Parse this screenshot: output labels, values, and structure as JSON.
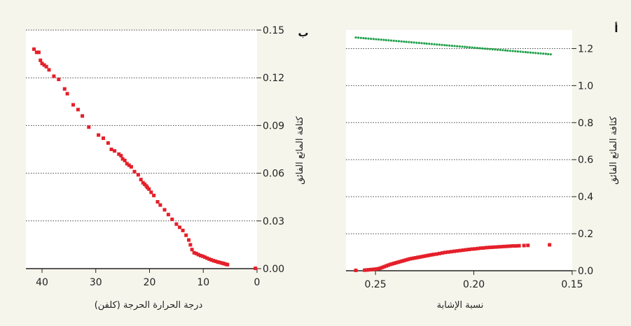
{
  "colors": {
    "background": "#f6f5ec",
    "plot_background": "#ffffff",
    "red_series": "#e4202a",
    "green_series": "#23a24d"
  },
  "chart_data": [
    {
      "panel": "ب",
      "type": "scatter",
      "title": "",
      "xlabel": "درجة الحرارة الحرجة (كلفن)",
      "ylabel": "كثافة المائع الفائق",
      "xlim": [
        43,
        0
      ],
      "ylim": [
        0,
        0.15
      ],
      "xticks": [
        "40",
        "30",
        "20",
        "10",
        "0"
      ],
      "yticks": [
        "0.00",
        "0.03",
        "0.06",
        "0.09",
        "0.12",
        "0.15"
      ],
      "grid": true,
      "series": [
        {
          "color": "#e4202a",
          "x": [
            41.5,
            41,
            40.6,
            40.3,
            40,
            39.6,
            39.2,
            38.7,
            37.8,
            36.9,
            35.8,
            35.3,
            34.2,
            33.3,
            32.5,
            31.3,
            29.5,
            28.6,
            27.7,
            27.1,
            26.5,
            25.7,
            25.3,
            25,
            24.6,
            24.2,
            23.8,
            23.4,
            22.8,
            22.1,
            21.6,
            21.2,
            20.9,
            20.6,
            20.4,
            20.1,
            19.7,
            19.2,
            18.5,
            18,
            17.2,
            16.5,
            15.8,
            15,
            14.4,
            13.8,
            13.2,
            12.7,
            12.4,
            12.1,
            11.7,
            11.3,
            10.9,
            10.5,
            10.1,
            9.7,
            9.3,
            8.9,
            8.5,
            8.1,
            7.7,
            7.3,
            7,
            6.6,
            6.3,
            6,
            5.7,
            5.5,
            0.3
          ],
          "y": [
            0.138,
            0.136,
            0.136,
            0.131,
            0.129,
            0.128,
            0.127,
            0.125,
            0.121,
            0.119,
            0.113,
            0.11,
            0.103,
            0.1,
            0.096,
            0.089,
            0.084,
            0.082,
            0.079,
            0.075,
            0.074,
            0.072,
            0.071,
            0.069,
            0.068,
            0.066,
            0.065,
            0.064,
            0.061,
            0.059,
            0.056,
            0.054,
            0.053,
            0.052,
            0.051,
            0.05,
            0.048,
            0.046,
            0.042,
            0.04,
            0.037,
            0.034,
            0.031,
            0.028,
            0.026,
            0.024,
            0.021,
            0.018,
            0.015,
            0.012,
            0.01,
            0.0095,
            0.0088,
            0.0082,
            0.0078,
            0.0072,
            0.0066,
            0.006,
            0.0055,
            0.005,
            0.0046,
            0.0042,
            0.0039,
            0.0036,
            0.0033,
            0.003,
            0.0027,
            0.0025,
            0.0002
          ]
        }
      ]
    },
    {
      "panel": "أ",
      "type": "scatter",
      "title": "",
      "xlabel": "نسبة الإشابة",
      "ylabel": "كثافة المائع الفائق",
      "xlim": [
        0.265,
        0.15
      ],
      "ylim": [
        0,
        1.3
      ],
      "xticks": [
        "0.25",
        "0.20",
        "0.15"
      ],
      "yticks": [
        "0.0",
        "0.2",
        "0.4",
        "0.6",
        "0.8",
        "1.0",
        "1.2"
      ],
      "grid": true,
      "series": [
        {
          "color": "#23a24d",
          "x": [
            0.26,
            0.2587,
            0.2574,
            0.2561,
            0.2549,
            0.2536,
            0.2523,
            0.251,
            0.2497,
            0.2484,
            0.2471,
            0.2458,
            0.2446,
            0.2433,
            0.242,
            0.2407,
            0.2394,
            0.2381,
            0.2368,
            0.2355,
            0.2343,
            0.233,
            0.2317,
            0.2304,
            0.2291,
            0.2278,
            0.2265,
            0.2252,
            0.224,
            0.2227,
            0.2214,
            0.2201,
            0.2188,
            0.2175,
            0.2162,
            0.2149,
            0.2137,
            0.2124,
            0.2111,
            0.2098,
            0.2085,
            0.2072,
            0.2059,
            0.2046,
            0.2034,
            0.2021,
            0.2008,
            0.1995,
            0.1982,
            0.1969,
            0.1956,
            0.1943,
            0.1931,
            0.1918,
            0.1905,
            0.1892,
            0.1879,
            0.1866,
            0.1853,
            0.184,
            0.1828,
            0.1815,
            0.1802,
            0.1789,
            0.1776,
            0.1763,
            0.175,
            0.1737,
            0.1725,
            0.1712,
            0.1699,
            0.1686,
            0.1673,
            0.166,
            0.1647,
            0.1634,
            0.1622,
            0.1609
          ],
          "y": [
            1.26,
            1.2588,
            1.2576,
            1.2564,
            1.2553,
            1.2541,
            1.2529,
            1.2517,
            1.2505,
            1.2494,
            1.2482,
            1.247,
            1.2458,
            1.2446,
            1.2434,
            1.2423,
            1.2411,
            1.2399,
            1.2387,
            1.2375,
            1.2364,
            1.2352,
            1.234,
            1.2328,
            1.2316,
            1.2305,
            1.2293,
            1.2281,
            1.2269,
            1.2257,
            1.2246,
            1.2234,
            1.2222,
            1.221,
            1.2198,
            1.2186,
            1.2175,
            1.2163,
            1.2151,
            1.2139,
            1.2127,
            1.2116,
            1.2104,
            1.2092,
            1.208,
            1.2068,
            1.2057,
            1.2045,
            1.2033,
            1.2021,
            1.2009,
            1.1997,
            1.1986,
            1.1974,
            1.1962,
            1.195,
            1.1938,
            1.1927,
            1.1915,
            1.1903,
            1.1891,
            1.1879,
            1.1868,
            1.1856,
            1.1844,
            1.1832,
            1.182,
            1.1809,
            1.1797,
            1.1785,
            1.1773,
            1.1761,
            1.1749,
            1.1738,
            1.1726,
            1.1714,
            1.1702,
            1.169
          ]
        },
        {
          "color": "#e4202a",
          "x": [
            0.26,
            0.2555,
            0.2545,
            0.2535,
            0.2525,
            0.2515,
            0.2505,
            0.2495,
            0.2485,
            0.2475,
            0.2465,
            0.2455,
            0.2445,
            0.2435,
            0.2425,
            0.2415,
            0.2405,
            0.2395,
            0.2385,
            0.2375,
            0.2365,
            0.2355,
            0.2345,
            0.2335,
            0.2325,
            0.2315,
            0.2305,
            0.2295,
            0.2285,
            0.2275,
            0.2265,
            0.2255,
            0.2245,
            0.2235,
            0.2225,
            0.2215,
            0.2205,
            0.219,
            0.2175,
            0.216,
            0.2145,
            0.213,
            0.2115,
            0.21,
            0.2085,
            0.207,
            0.2055,
            0.204,
            0.2025,
            0.201,
            0.1995,
            0.198,
            0.1965,
            0.195,
            0.1935,
            0.192,
            0.1905,
            0.189,
            0.1875,
            0.186,
            0.1845,
            0.183,
            0.1815,
            0.18,
            0.1785,
            0.177,
            0.1745,
            0.1725,
            0.1615
          ],
          "y": [
            0.002,
            0.003,
            0.004,
            0.005,
            0.006,
            0.007,
            0.008,
            0.009,
            0.011,
            0.014,
            0.018,
            0.022,
            0.026,
            0.03,
            0.034,
            0.037,
            0.04,
            0.043,
            0.046,
            0.049,
            0.052,
            0.055,
            0.058,
            0.061,
            0.064,
            0.066,
            0.068,
            0.07,
            0.072,
            0.074,
            0.076,
            0.078,
            0.08,
            0.082,
            0.084,
            0.086,
            0.088,
            0.09,
            0.093,
            0.096,
            0.099,
            0.101,
            0.103,
            0.105,
            0.107,
            0.109,
            0.111,
            0.113,
            0.115,
            0.117,
            0.118,
            0.12,
            0.122,
            0.123,
            0.125,
            0.126,
            0.127,
            0.128,
            0.129,
            0.13,
            0.131,
            0.132,
            0.133,
            0.134,
            0.134,
            0.135,
            0.136,
            0.137,
            0.14
          ]
        }
      ]
    }
  ]
}
